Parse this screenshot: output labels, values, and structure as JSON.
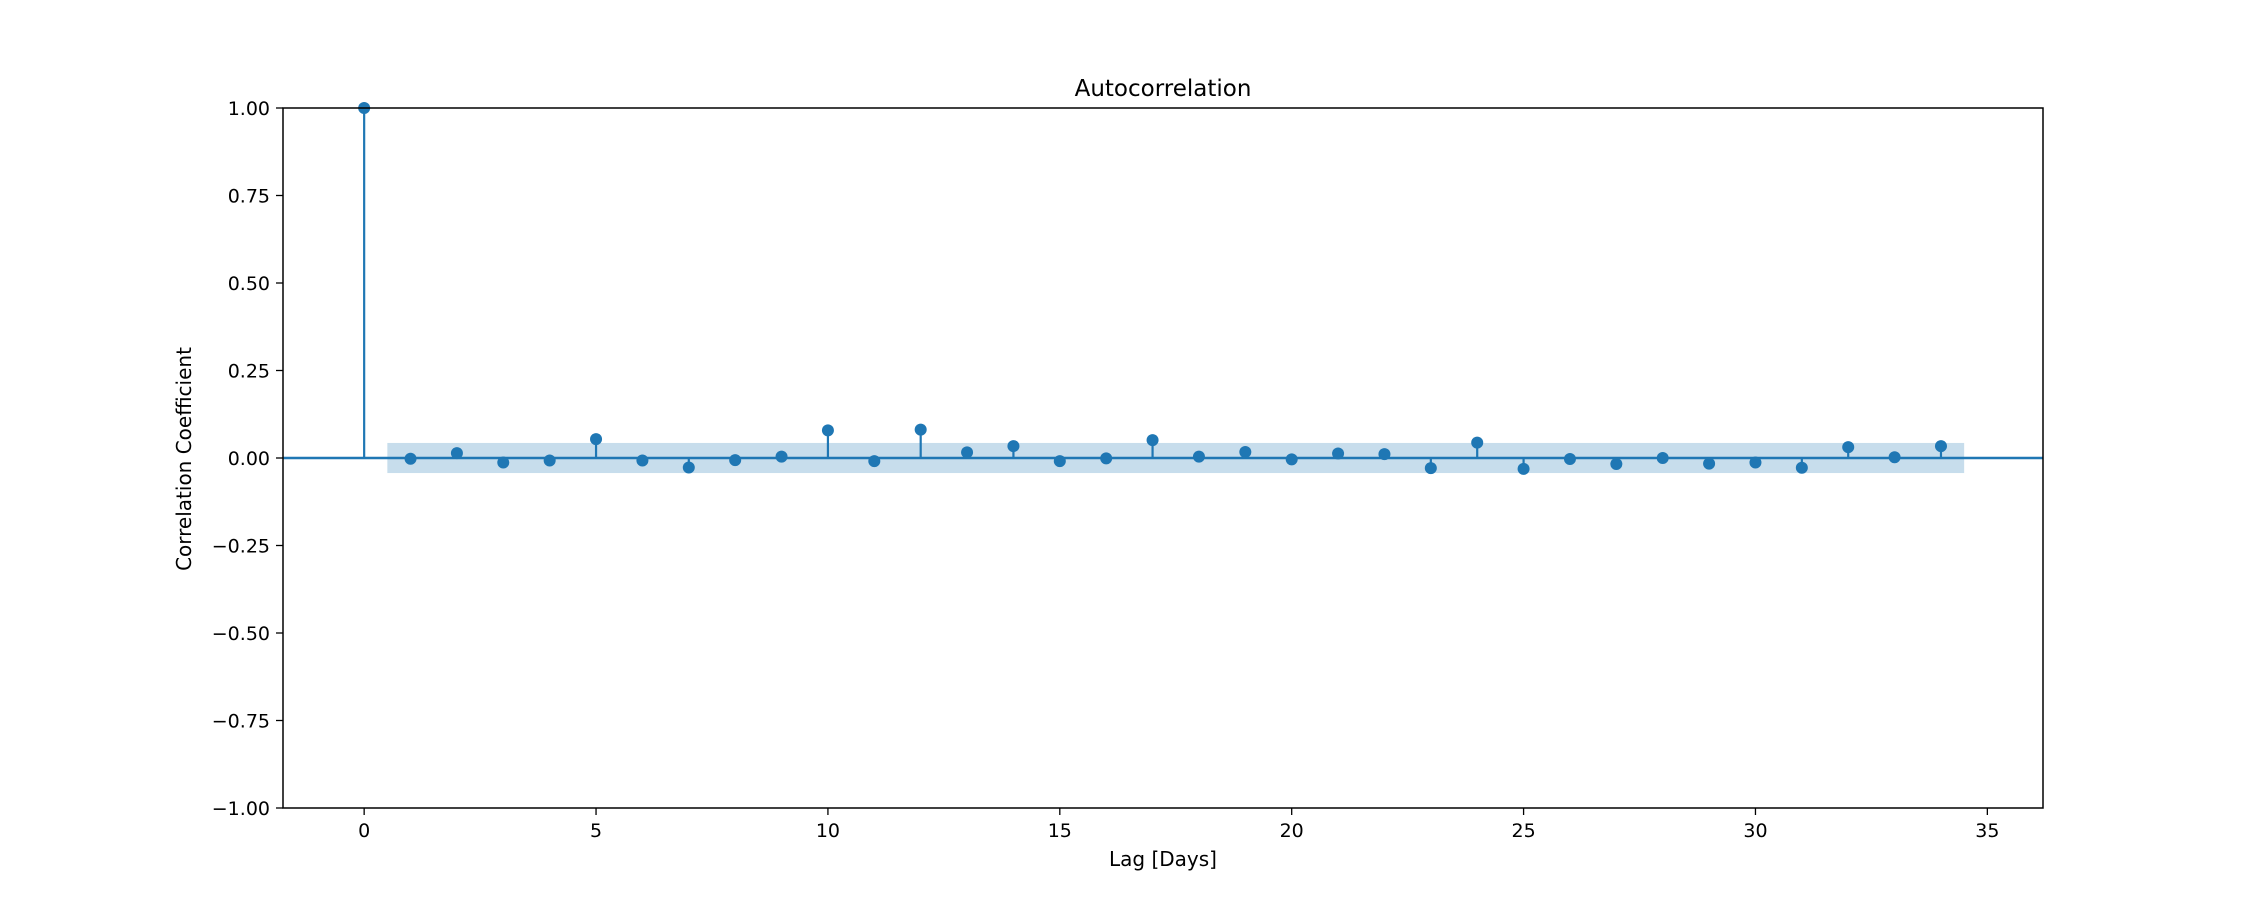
{
  "chart_data": {
    "type": "stem",
    "title": "Autocorrelation",
    "xlabel": "Lag [Days]",
    "ylabel": "Correlation Coefficient",
    "xlim": [
      -1.75,
      36.2
    ],
    "ylim": [
      -1.0,
      1.0
    ],
    "xticks": [
      0,
      5,
      10,
      15,
      20,
      25,
      30,
      35
    ],
    "yticks": [
      1.0,
      0.75,
      0.5,
      0.25,
      0.0,
      -0.25,
      -0.5,
      -0.75,
      -1.0
    ],
    "ytick_labels": [
      "1.00",
      "0.75",
      "0.50",
      "0.25",
      "0.00",
      "−0.25",
      "−0.50",
      "−0.75",
      "−1.00"
    ],
    "grid": false,
    "colors": {
      "stem": "#1f77b4",
      "band": "#1f77b4"
    },
    "confidence_band": {
      "x_range": [
        0.5,
        34.5
      ],
      "lower": -0.043,
      "upper": 0.043
    },
    "series": [
      {
        "x": [
          0,
          1,
          2,
          3,
          4,
          5,
          6,
          7,
          8,
          9,
          10,
          11,
          12,
          13,
          14,
          15,
          16,
          17,
          18,
          19,
          20,
          21,
          22,
          23,
          24,
          25,
          26,
          27,
          28,
          29,
          30,
          31,
          32,
          33,
          34
        ],
        "values": [
          1.0,
          -0.002,
          0.014,
          -0.013,
          -0.007,
          0.054,
          -0.007,
          -0.027,
          -0.006,
          0.004,
          0.079,
          -0.009,
          0.081,
          0.016,
          0.034,
          -0.009,
          -0.001,
          0.051,
          0.004,
          0.017,
          -0.004,
          0.013,
          0.011,
          -0.029,
          0.044,
          -0.031,
          -0.003,
          -0.017,
          0.0,
          -0.016,
          -0.013,
          -0.028,
          0.031,
          0.002,
          0.034
        ]
      }
    ]
  }
}
